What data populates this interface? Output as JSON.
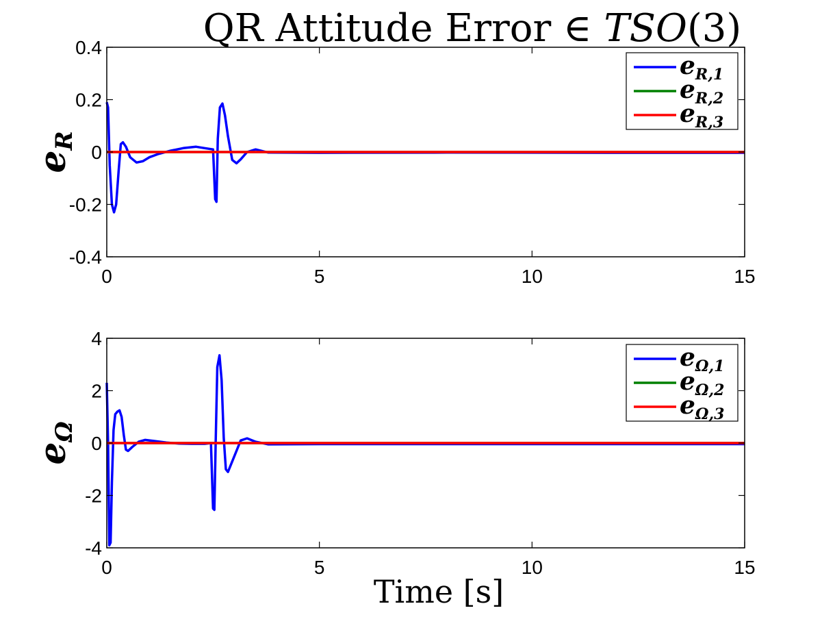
{
  "figure": {
    "title": {
      "prefix": "QR Attitude Error ∈ ",
      "math": "TSO",
      "suffix": "(3)"
    },
    "xlabel": "Time [s]"
  },
  "colors": {
    "series1": "#0000ff",
    "series2": "#008000",
    "series3": "#ff0000"
  },
  "chart_data": [
    {
      "type": "line",
      "ylabel": {
        "main": "e",
        "sub": "R"
      },
      "xlim": [
        0,
        15
      ],
      "ylim": [
        -0.4,
        0.4
      ],
      "xticks": [
        0,
        5,
        10,
        15
      ],
      "xtick_labels": [
        "0",
        "5",
        "10",
        "15"
      ],
      "yticks": [
        -0.4,
        -0.2,
        0,
        0.2,
        0.4
      ],
      "ytick_labels": [
        "-0.4",
        "-0.2",
        "0",
        "0.2",
        "0.4"
      ],
      "legend_position": "top-right",
      "series": [
        {
          "name": {
            "main": "e",
            "sub": "R,1"
          },
          "color": "#0000ff",
          "x": [
            0,
            0.03,
            0.07,
            0.12,
            0.17,
            0.22,
            0.28,
            0.33,
            0.38,
            0.45,
            0.55,
            0.7,
            0.85,
            1.0,
            1.2,
            1.5,
            1.8,
            2.1,
            2.3,
            2.5,
            2.55,
            2.58,
            2.61,
            2.66,
            2.72,
            2.78,
            2.85,
            2.95,
            3.05,
            3.15,
            3.3,
            3.5,
            3.8,
            5,
            8,
            12,
            15
          ],
          "y": [
            0.19,
            0.17,
            -0.05,
            -0.2,
            -0.23,
            -0.2,
            -0.07,
            0.03,
            0.037,
            0.02,
            -0.02,
            -0.04,
            -0.035,
            -0.02,
            -0.008,
            0.005,
            0.015,
            0.02,
            0.015,
            0.01,
            -0.18,
            -0.19,
            0.05,
            0.17,
            0.185,
            0.14,
            0.06,
            -0.03,
            -0.043,
            -0.028,
            0.0,
            0.01,
            -0.002,
            -0.003,
            -0.002,
            -0.003,
            -0.003
          ]
        },
        {
          "name": {
            "main": "e",
            "sub": "R,2"
          },
          "color": "#008000",
          "x": [
            0,
            15
          ],
          "y": [
            0,
            0
          ]
        },
        {
          "name": {
            "main": "e",
            "sub": "R,3"
          },
          "color": "#ff0000",
          "x": [
            0,
            15
          ],
          "y": [
            0,
            0
          ]
        }
      ]
    },
    {
      "type": "line",
      "ylabel": {
        "main": "e",
        "sub": "Ω"
      },
      "xlim": [
        0,
        15
      ],
      "ylim": [
        -4,
        4
      ],
      "xticks": [
        0,
        5,
        10,
        15
      ],
      "xtick_labels": [
        "0",
        "5",
        "10",
        "15"
      ],
      "yticks": [
        -4,
        -2,
        0,
        2,
        4
      ],
      "ytick_labels": [
        "-4",
        "-2",
        "0",
        "2",
        "4"
      ],
      "legend_position": "top-right",
      "series": [
        {
          "name": {
            "main": "e",
            "sub": "Ω,1"
          },
          "color": "#0000ff",
          "x": [
            0,
            0.03,
            0.06,
            0.09,
            0.12,
            0.16,
            0.2,
            0.25,
            0.3,
            0.35,
            0.4,
            0.45,
            0.5,
            0.6,
            0.75,
            0.9,
            1.1,
            1.4,
            1.7,
            2.0,
            2.3,
            2.45,
            2.5,
            2.53,
            2.56,
            2.6,
            2.65,
            2.7,
            2.75,
            2.8,
            2.85,
            2.95,
            3.05,
            3.15,
            3.3,
            3.5,
            3.8,
            5,
            8,
            12,
            15
          ],
          "y": [
            2.3,
            0.0,
            -3.9,
            -3.8,
            -1.5,
            0.5,
            1.1,
            1.2,
            1.25,
            1.0,
            0.3,
            -0.25,
            -0.3,
            -0.15,
            0.05,
            0.12,
            0.08,
            0.02,
            -0.02,
            -0.03,
            -0.03,
            0.0,
            -2.5,
            -2.55,
            0.0,
            2.9,
            3.35,
            2.4,
            0.2,
            -1.0,
            -1.1,
            -0.7,
            -0.3,
            0.1,
            0.18,
            0.05,
            -0.05,
            -0.04,
            -0.04,
            -0.04,
            -0.04
          ]
        },
        {
          "name": {
            "main": "e",
            "sub": "Ω,2"
          },
          "color": "#008000",
          "x": [
            0,
            15
          ],
          "y": [
            0,
            0
          ]
        },
        {
          "name": {
            "main": "e",
            "sub": "Ω,3"
          },
          "color": "#ff0000",
          "x": [
            0,
            15
          ],
          "y": [
            0,
            0
          ]
        }
      ]
    }
  ]
}
